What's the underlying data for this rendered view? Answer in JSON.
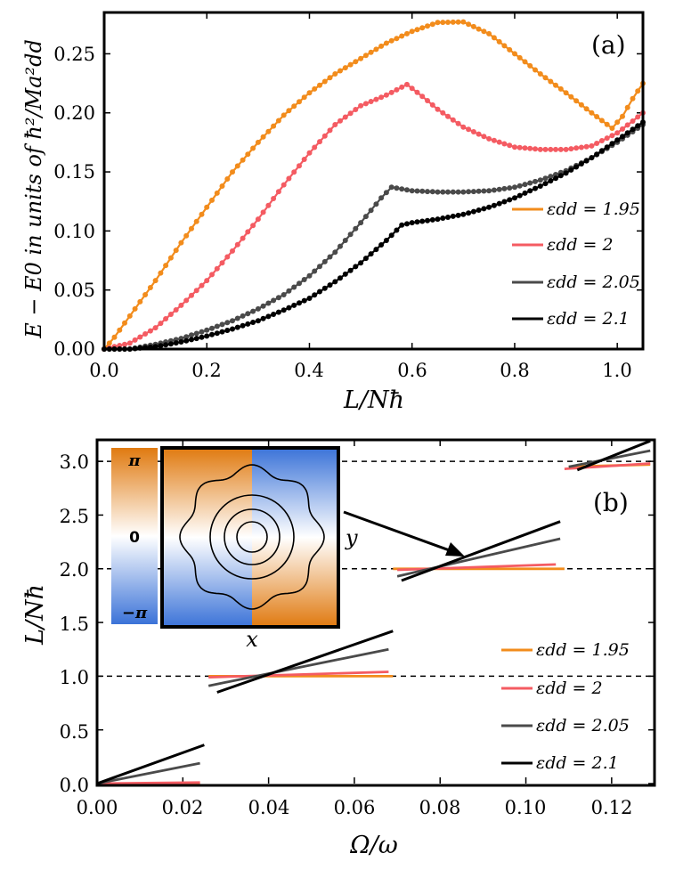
{
  "colors": {
    "s195": "#F28C1C",
    "s2": "#F45B62",
    "s205": "#4A4A4A",
    "s21": "#000000",
    "phase_hi": "#E07A10",
    "phase_mid": "#FFFFFF",
    "phase_lo": "#3B73D8"
  },
  "chart_data": [
    {
      "id": "a",
      "type": "line",
      "panel_label": "(a)",
      "xlabel": "L/Nħ",
      "ylabel": "E − E0 in units of ħ²/Ma²dd",
      "xlim": [
        0.0,
        1.05
      ],
      "ylim": [
        0.0,
        0.285
      ],
      "xticks": [
        "0.0",
        "0.2",
        "0.4",
        "0.6",
        "0.8",
        "1.0"
      ],
      "yticks": [
        "0.00",
        "0.05",
        "0.10",
        "0.15",
        "0.20",
        "0.25"
      ],
      "legend_position": "right",
      "series": [
        {
          "name": "εdd = 1.95",
          "color": "s195",
          "points": [
            [
              0,
              0
            ],
            [
              0.02,
              0.01
            ],
            [
              0.05,
              0.028
            ],
            [
              0.1,
              0.058
            ],
            [
              0.15,
              0.09
            ],
            [
              0.2,
              0.12
            ],
            [
              0.25,
              0.15
            ],
            [
              0.3,
              0.175
            ],
            [
              0.35,
              0.198
            ],
            [
              0.4,
              0.217
            ],
            [
              0.45,
              0.233
            ],
            [
              0.5,
              0.246
            ],
            [
              0.55,
              0.259
            ],
            [
              0.6,
              0.269
            ],
            [
              0.65,
              0.2765
            ],
            [
              0.7,
              0.277
            ],
            [
              0.75,
              0.267
            ],
            [
              0.8,
              0.25
            ],
            [
              0.85,
              0.233
            ],
            [
              0.9,
              0.217
            ],
            [
              0.95,
              0.2
            ],
            [
              0.99,
              0.187
            ],
            [
              1.01,
              0.197
            ],
            [
              1.03,
              0.212
            ],
            [
              1.05,
              0.225
            ]
          ]
        },
        {
          "name": "εdd = 2",
          "color": "s2",
          "points": [
            [
              0,
              0
            ],
            [
              0.05,
              0.005
            ],
            [
              0.1,
              0.018
            ],
            [
              0.15,
              0.037
            ],
            [
              0.2,
              0.058
            ],
            [
              0.25,
              0.083
            ],
            [
              0.3,
              0.11
            ],
            [
              0.35,
              0.139
            ],
            [
              0.4,
              0.166
            ],
            [
              0.45,
              0.19
            ],
            [
              0.5,
              0.206
            ],
            [
              0.55,
              0.215
            ],
            [
              0.59,
              0.224
            ],
            [
              0.62,
              0.214
            ],
            [
              0.65,
              0.203
            ],
            [
              0.7,
              0.188
            ],
            [
              0.75,
              0.178
            ],
            [
              0.8,
              0.171
            ],
            [
              0.85,
              0.169
            ],
            [
              0.9,
              0.169
            ],
            [
              0.95,
              0.172
            ],
            [
              1.0,
              0.183
            ],
            [
              1.03,
              0.193
            ],
            [
              1.05,
              0.2
            ]
          ]
        },
        {
          "name": "εdd = 2.05",
          "color": "s205",
          "points": [
            [
              0,
              0
            ],
            [
              0.05,
              0.0
            ],
            [
              0.1,
              0.004
            ],
            [
              0.15,
              0.009
            ],
            [
              0.2,
              0.016
            ],
            [
              0.25,
              0.024
            ],
            [
              0.3,
              0.034
            ],
            [
              0.35,
              0.046
            ],
            [
              0.4,
              0.062
            ],
            [
              0.45,
              0.082
            ],
            [
              0.5,
              0.107
            ],
            [
              0.54,
              0.128
            ],
            [
              0.56,
              0.137
            ],
            [
              0.6,
              0.134
            ],
            [
              0.65,
              0.133
            ],
            [
              0.7,
              0.133
            ],
            [
              0.75,
              0.134
            ],
            [
              0.8,
              0.137
            ],
            [
              0.85,
              0.143
            ],
            [
              0.9,
              0.151
            ],
            [
              0.95,
              0.162
            ],
            [
              1.0,
              0.175
            ],
            [
              1.05,
              0.19
            ]
          ]
        },
        {
          "name": "εdd = 2.1",
          "color": "s21",
          "points": [
            [
              0,
              0
            ],
            [
              0.05,
              0.0
            ],
            [
              0.1,
              0.002
            ],
            [
              0.15,
              0.006
            ],
            [
              0.2,
              0.011
            ],
            [
              0.25,
              0.017
            ],
            [
              0.3,
              0.024
            ],
            [
              0.35,
              0.033
            ],
            [
              0.4,
              0.043
            ],
            [
              0.45,
              0.057
            ],
            [
              0.5,
              0.073
            ],
            [
              0.55,
              0.092
            ],
            [
              0.58,
              0.105
            ],
            [
              0.6,
              0.107
            ],
            [
              0.65,
              0.11
            ],
            [
              0.7,
              0.114
            ],
            [
              0.75,
              0.12
            ],
            [
              0.8,
              0.128
            ],
            [
              0.85,
              0.138
            ],
            [
              0.9,
              0.149
            ],
            [
              0.95,
              0.162
            ],
            [
              1.0,
              0.177
            ],
            [
              1.05,
              0.192
            ]
          ]
        }
      ]
    },
    {
      "id": "b",
      "type": "line",
      "panel_label": "(b)",
      "xlabel": "Ω/ω",
      "ylabel": "L/Nħ",
      "xlim": [
        0.0,
        0.13
      ],
      "ylim": [
        0.0,
        3.2
      ],
      "xticks": [
        "0.00",
        "0.02",
        "0.04",
        "0.06",
        "0.08",
        "0.10",
        "0.12"
      ],
      "yticks": [
        "0.0",
        "0.5",
        "1.0",
        "1.5",
        "2.0",
        "2.5",
        "3.0"
      ],
      "reference_lines": [
        1.0,
        2.0,
        3.0
      ],
      "legend_position": "right",
      "series": [
        {
          "name": "εdd = 1.95",
          "color": "s195",
          "segments": [
            [
              [
                0.0,
                0.0
              ],
              [
                0.024,
                0.0
              ]
            ],
            [
              [
                0.026,
                1.0
              ],
              [
                0.069,
                1.0
              ]
            ],
            [
              [
                0.069,
                2.0
              ],
              [
                0.109,
                2.0
              ]
            ],
            [
              [
                0.11,
                2.95
              ],
              [
                0.129,
                2.97
              ]
            ]
          ]
        },
        {
          "name": "εdd = 2",
          "color": "s2",
          "segments": [
            [
              [
                0.0,
                0.0
              ],
              [
                0.024,
                0.01
              ]
            ],
            [
              [
                0.026,
                0.99
              ],
              [
                0.068,
                1.04
              ]
            ],
            [
              [
                0.07,
                1.99
              ],
              [
                0.107,
                2.04
              ]
            ],
            [
              [
                0.109,
                2.93
              ],
              [
                0.129,
                2.98
              ]
            ]
          ]
        },
        {
          "name": "εdd = 2.05",
          "color": "s205",
          "segments": [
            [
              [
                0.0,
                0.0
              ],
              [
                0.024,
                0.19
              ]
            ],
            [
              [
                0.026,
                0.91
              ],
              [
                0.068,
                1.25
              ]
            ],
            [
              [
                0.07,
                1.93
              ],
              [
                0.108,
                2.28
              ]
            ],
            [
              [
                0.11,
                2.95
              ],
              [
                0.129,
                3.1
              ]
            ]
          ]
        },
        {
          "name": "εdd = 2.1",
          "color": "s21",
          "segments": [
            [
              [
                0.0,
                0.0
              ],
              [
                0.025,
                0.36
              ]
            ],
            [
              [
                0.028,
                0.85
              ],
              [
                0.069,
                1.42
              ]
            ],
            [
              [
                0.071,
                1.89
              ],
              [
                0.108,
                2.44
              ]
            ],
            [
              [
                0.112,
                2.92
              ],
              [
                0.129,
                3.19
              ]
            ]
          ]
        }
      ],
      "inset": {
        "colorbar_ticks": [
          "π",
          "0",
          "−π"
        ],
        "x_label": "x",
        "y_label": "y"
      }
    }
  ]
}
